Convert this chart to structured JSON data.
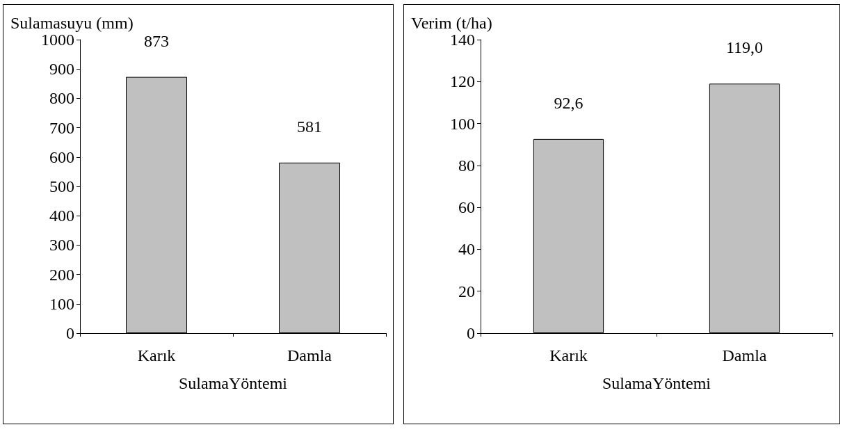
{
  "chart_data": [
    {
      "type": "bar",
      "ylabel": "Sulamasuyu (mm)",
      "xlabel": "SulamaYöntemi",
      "categories": [
        "Karık",
        "Damla"
      ],
      "values": [
        873,
        581
      ],
      "color": "#c0c0c0",
      "ylim": [
        0,
        1000
      ],
      "yticks": [
        0,
        100,
        200,
        300,
        400,
        500,
        600,
        700,
        800,
        900,
        1000
      ],
      "grid": false,
      "data_labels": true
    },
    {
      "type": "bar",
      "ylabel": "Verim (t/ha)",
      "xlabel": "SulamaYöntemi",
      "categories": [
        "Karık",
        "Damla"
      ],
      "values": [
        92.6,
        119.0
      ],
      "value_labels": [
        "92,6",
        "119,0"
      ],
      "color": "#c0c0c0",
      "ylim": [
        0,
        140
      ],
      "yticks": [
        0,
        20,
        40,
        60,
        80,
        100,
        120,
        140
      ],
      "grid": false
    }
  ]
}
